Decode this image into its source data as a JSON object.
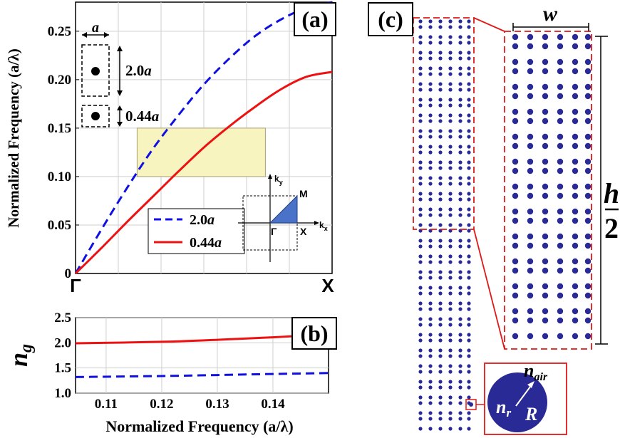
{
  "panel_labels": {
    "a": "(a)",
    "b": "(b)",
    "c": "(c)"
  },
  "colors": {
    "series1": "#1010e0",
    "series2": "#ee1111",
    "highlight": "#f8f4c0",
    "rod": "#2a2a96",
    "frame": "#e01818"
  },
  "inset": {
    "lattice_label": "a",
    "cell1_label": "2.0",
    "cell1_unit": "a",
    "cell2_label": "0.44",
    "cell2_unit": "a",
    "bz_ky": "k",
    "bz_ky_sub": "y",
    "bz_kx": "k",
    "bz_kx_sub": "x",
    "bz_gamma": "Γ",
    "bz_x": "X",
    "bz_m": "M"
  },
  "panel_c": {
    "width_label": "w",
    "height_num": "h",
    "height_den": "2",
    "n_r": "n",
    "n_r_sub": "r",
    "R": "R",
    "n_air": "n",
    "n_air_sub": "air"
  },
  "chart_data": [
    {
      "type": "line",
      "ylabel": "Normalized Frequency (a/λ)",
      "x_tick_labels": [
        "Γ",
        "X"
      ],
      "y_ticks": [
        "0",
        "0.05",
        "0.10",
        "0.15",
        "0.20",
        "0.25"
      ],
      "ylim": [
        0,
        0.28
      ],
      "x": [
        0,
        0.1,
        0.2,
        0.3,
        0.4,
        0.5,
        0.6,
        0.7,
        0.8,
        0.9,
        1.0
      ],
      "series": [
        {
          "name": "2.0a",
          "name_num": "2.0",
          "name_unit": "a",
          "style": "dashed",
          "color": "#1010e0",
          "values": [
            0,
            0.045,
            0.088,
            0.128,
            0.163,
            0.195,
            0.222,
            0.245,
            0.262,
            0.274,
            0.28
          ]
        },
        {
          "name": "0.44a",
          "name_num": "0.44",
          "name_unit": "a",
          "style": "solid",
          "color": "#ee1111",
          "values": [
            0,
            0.026,
            0.053,
            0.079,
            0.105,
            0.13,
            0.152,
            0.172,
            0.19,
            0.203,
            0.208
          ]
        }
      ],
      "highlight_region": {
        "x": [
          0.24,
          0.74
        ],
        "y": [
          0.1,
          0.15
        ]
      },
      "legend_position": "lower-right",
      "grid": true
    },
    {
      "type": "line",
      "xlabel": "Normalized Frequency (a/λ)",
      "ylabel_main": "n",
      "ylabel_sub": "g",
      "x_ticks": [
        "0.11",
        "0.12",
        "0.13",
        "0.14"
      ],
      "y_ticks": [
        "1.0",
        "1.5",
        "2.0",
        "2.5"
      ],
      "xlim": [
        0.1045,
        0.15
      ],
      "ylim": [
        1.0,
        2.5
      ],
      "series": [
        {
          "name": "0.44a",
          "style": "solid",
          "color": "#ee1111",
          "x": [
            0.1045,
            0.12,
            0.13,
            0.14,
            0.15
          ],
          "values": [
            1.99,
            2.02,
            2.06,
            2.11,
            2.17
          ]
        },
        {
          "name": "2.0a",
          "style": "dashed",
          "color": "#1010e0",
          "x": [
            0.1045,
            0.12,
            0.13,
            0.14,
            0.15
          ],
          "values": [
            1.32,
            1.34,
            1.36,
            1.38,
            1.4
          ]
        }
      ],
      "grid": true
    }
  ]
}
